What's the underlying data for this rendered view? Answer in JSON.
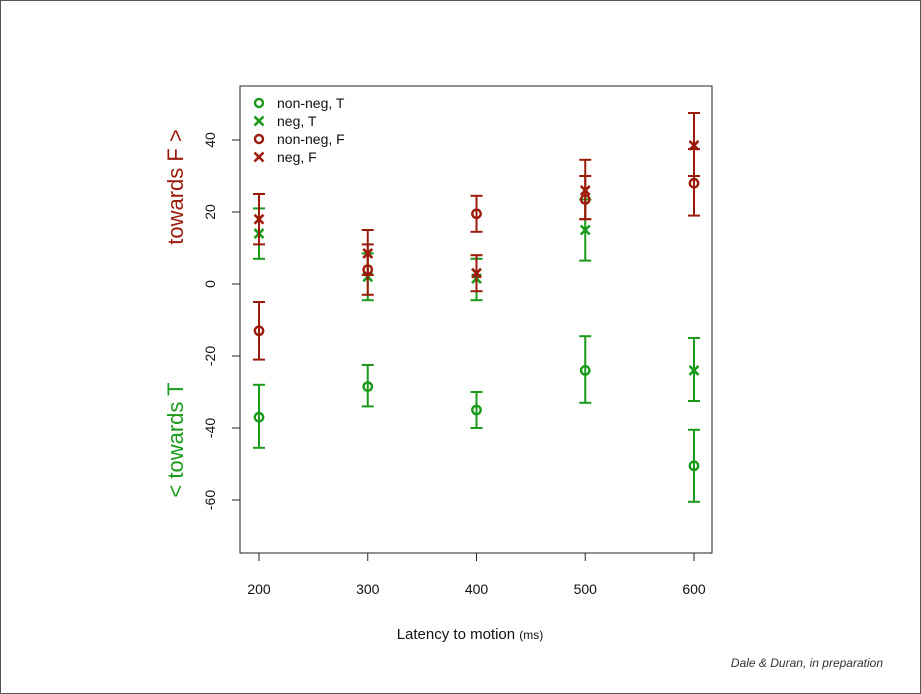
{
  "caption": "Dale & Duran, in preparation",
  "chart_data": {
    "type": "scatter",
    "title": "",
    "xlabel": "Latency to motion",
    "xlabel_unit": "(ms)",
    "ylabel_top": "towards F >",
    "ylabel_bottom": "< towards T",
    "x_ticks": [
      200,
      300,
      400,
      500,
      600
    ],
    "y_ticks": [
      -60,
      -40,
      -20,
      0,
      20,
      40
    ],
    "xlim": [
      190,
      610
    ],
    "ylim": [
      -75,
      55
    ],
    "legend_position": "top-left",
    "colors": {
      "green": "#1a9a1a",
      "red": "#9b1b0b"
    },
    "series": [
      {
        "name": "non-neg, T",
        "marker": "circle",
        "color": "#1a9a1a",
        "x": [
          200,
          300,
          400,
          500,
          600
        ],
        "y": [
          -37,
          -28.5,
          -35,
          -24,
          -50.5
        ],
        "err_low": [
          -45.5,
          -34,
          -40,
          -33,
          -60.5
        ],
        "err_high": [
          -28,
          -22.5,
          -30,
          -14.5,
          -40.5
        ]
      },
      {
        "name": "neg, T",
        "marker": "x",
        "color": "#1a9a1a",
        "x": [
          200,
          300,
          400,
          500,
          600
        ],
        "y": [
          14,
          2,
          1.5,
          15,
          -24
        ],
        "err_low": [
          7,
          -4.5,
          -4.5,
          6.5,
          -32.5
        ],
        "err_high": [
          21,
          8.5,
          7,
          23.5,
          -15
        ]
      },
      {
        "name": "non-neg, F",
        "marker": "circle",
        "color": "#9b1b0b",
        "x": [
          200,
          300,
          400,
          500,
          600
        ],
        "y": [
          -13,
          4,
          19.5,
          23.5,
          28
        ],
        "err_low": [
          -21,
          -3,
          14.5,
          18,
          19
        ],
        "err_high": [
          -5,
          11,
          24.5,
          30,
          37.5
        ]
      },
      {
        "name": "neg, F",
        "marker": "x",
        "color": "#9b1b0b",
        "x": [
          200,
          300,
          400,
          500,
          600
        ],
        "y": [
          18,
          8.5,
          3,
          26,
          38.5
        ],
        "err_low": [
          11,
          2.5,
          -2,
          18,
          30
        ],
        "err_high": [
          25,
          15,
          8,
          34.5,
          47.5
        ]
      }
    ]
  }
}
